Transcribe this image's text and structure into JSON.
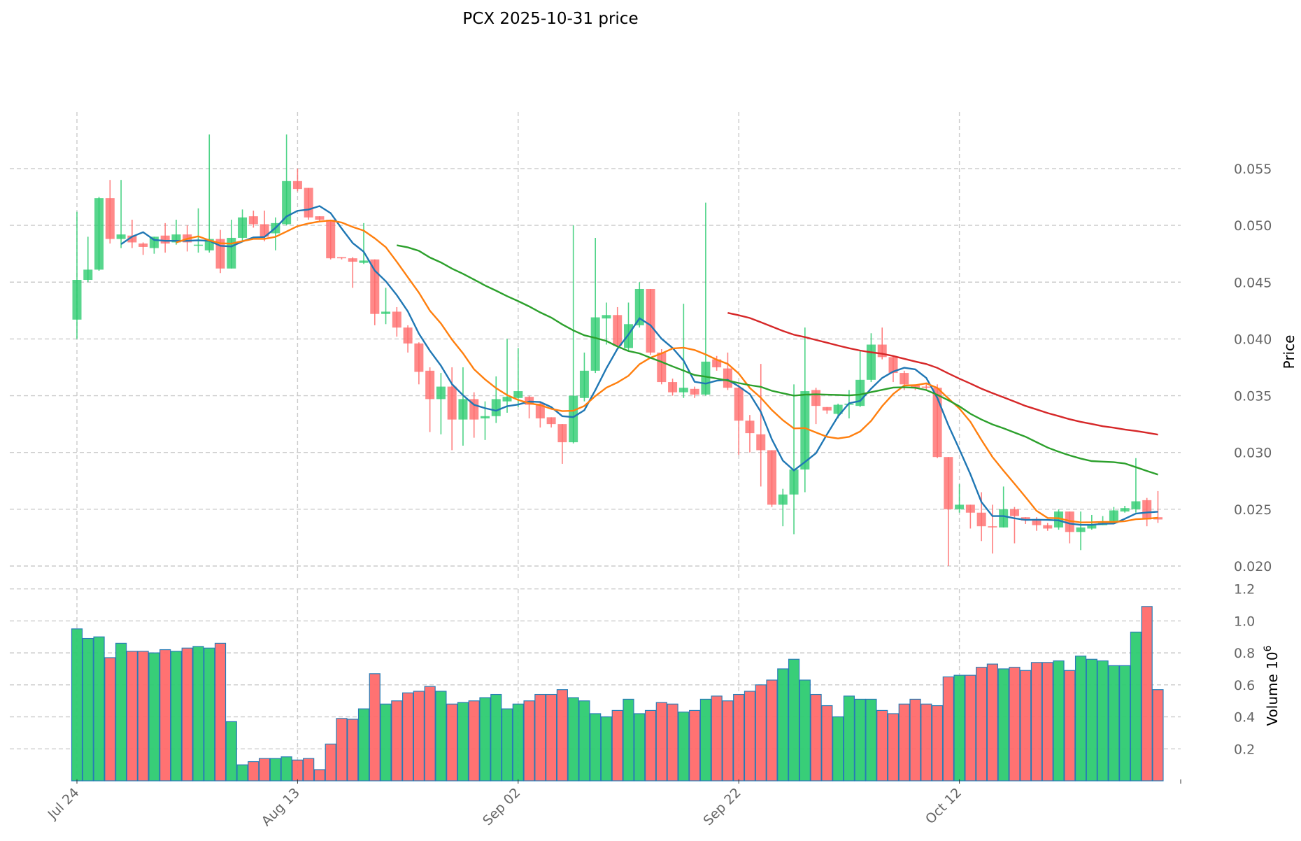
{
  "chart_data": {
    "type": "candlestick",
    "title": "PCX  2025-10-31  price",
    "ylabel": "Price",
    "volume_label": "Volume  10",
    "volume_exp": "6",
    "ylim": [
      0.0185,
      0.0595
    ],
    "vol_lim": [
      0,
      1.2
    ],
    "price_ticks": [
      "0.020",
      "0.025",
      "0.030",
      "0.035",
      "0.040",
      "0.045",
      "0.050",
      "0.055"
    ],
    "volume_ticks": [
      "0.2",
      "0.4",
      "0.6",
      "0.8",
      "1.0",
      "1.2"
    ],
    "x_ticks": [
      {
        "label": "Jul 24",
        "index": 0
      },
      {
        "label": "Aug 13",
        "index": 20
      },
      {
        "label": "Sep 02",
        "index": 40
      },
      {
        "label": "Sep 22",
        "index": 60
      },
      {
        "label": "Oct 12",
        "index": 80
      }
    ],
    "colors": {
      "up": "#2ecc71",
      "down": "#ff6b6b",
      "vol_edge": "#1f77b4"
    },
    "moving_averages": [
      {
        "window": 5,
        "color": "#1f77b4"
      },
      {
        "window": 10,
        "color": "#ff7f0e"
      },
      {
        "window": 30,
        "color": "#2ca02c"
      },
      {
        "window": 60,
        "color": "#d62728"
      }
    ],
    "ohlcv": [
      [
        0.0417,
        0.0512,
        0.04,
        0.0452,
        0.95
      ],
      [
        0.0452,
        0.049,
        0.045,
        0.0461,
        0.89
      ],
      [
        0.0461,
        0.0525,
        0.046,
        0.0524,
        0.9
      ],
      [
        0.0524,
        0.054,
        0.0484,
        0.0488,
        0.77
      ],
      [
        0.0488,
        0.054,
        0.048,
        0.0492,
        0.86
      ],
      [
        0.0491,
        0.0505,
        0.048,
        0.0485,
        0.81
      ],
      [
        0.0484,
        0.0485,
        0.0474,
        0.0481,
        0.81
      ],
      [
        0.048,
        0.049,
        0.0475,
        0.049,
        0.8
      ],
      [
        0.0491,
        0.0502,
        0.0476,
        0.0484,
        0.82
      ],
      [
        0.0485,
        0.0505,
        0.0483,
        0.0492,
        0.81
      ],
      [
        0.0492,
        0.05,
        0.0477,
        0.0485,
        0.83
      ],
      [
        0.0482,
        0.0515,
        0.0476,
        0.0483,
        0.84
      ],
      [
        0.0478,
        0.058,
        0.0476,
        0.0488,
        0.83
      ],
      [
        0.0488,
        0.0496,
        0.0458,
        0.0462,
        0.86
      ],
      [
        0.0462,
        0.0505,
        0.0462,
        0.0489,
        0.37
      ],
      [
        0.0489,
        0.0514,
        0.0485,
        0.0507,
        0.1
      ],
      [
        0.0508,
        0.0513,
        0.0498,
        0.0501,
        0.12
      ],
      [
        0.0501,
        0.0513,
        0.0486,
        0.049,
        0.14
      ],
      [
        0.0493,
        0.0507,
        0.0478,
        0.0502,
        0.14
      ],
      [
        0.0501,
        0.058,
        0.05,
        0.0539,
        0.15
      ],
      [
        0.0539,
        0.055,
        0.053,
        0.0532,
        0.13
      ],
      [
        0.0533,
        0.0533,
        0.0505,
        0.0507,
        0.14
      ],
      [
        0.0508,
        0.0508,
        0.0504,
        0.0505,
        0.07
      ],
      [
        0.0505,
        0.0505,
        0.047,
        0.0471,
        0.23
      ],
      [
        0.0472,
        0.0472,
        0.047,
        0.0471,
        0.39
      ],
      [
        0.0471,
        0.0472,
        0.0445,
        0.0468,
        0.385
      ],
      [
        0.0467,
        0.0502,
        0.0466,
        0.0469,
        0.45
      ],
      [
        0.047,
        0.047,
        0.0412,
        0.0422,
        0.67
      ],
      [
        0.0422,
        0.0445,
        0.0413,
        0.0424,
        0.48
      ],
      [
        0.0424,
        0.0428,
        0.0402,
        0.041,
        0.5
      ],
      [
        0.041,
        0.0412,
        0.0388,
        0.0396,
        0.55
      ],
      [
        0.0396,
        0.0397,
        0.036,
        0.0371,
        0.56
      ],
      [
        0.0372,
        0.0375,
        0.0318,
        0.0347,
        0.59
      ],
      [
        0.0347,
        0.037,
        0.0316,
        0.0358,
        0.56
      ],
      [
        0.0358,
        0.0375,
        0.0302,
        0.0329,
        0.48
      ],
      [
        0.0329,
        0.0375,
        0.0306,
        0.0347,
        0.49
      ],
      [
        0.0347,
        0.0353,
        0.0313,
        0.0329,
        0.5
      ],
      [
        0.033,
        0.0345,
        0.0311,
        0.0332,
        0.52
      ],
      [
        0.0332,
        0.0367,
        0.0326,
        0.0347,
        0.54
      ],
      [
        0.0345,
        0.04,
        0.0335,
        0.0349,
        0.45
      ],
      [
        0.0348,
        0.0392,
        0.034,
        0.0354,
        0.48
      ],
      [
        0.0349,
        0.035,
        0.033,
        0.0342,
        0.5
      ],
      [
        0.0343,
        0.0345,
        0.0322,
        0.033,
        0.54
      ],
      [
        0.0331,
        0.0331,
        0.0322,
        0.0325,
        0.54
      ],
      [
        0.0325,
        0.0325,
        0.029,
        0.0309,
        0.57
      ],
      [
        0.0309,
        0.05,
        0.0308,
        0.035,
        0.52
      ],
      [
        0.0348,
        0.0388,
        0.0345,
        0.0372,
        0.5
      ],
      [
        0.0372,
        0.0489,
        0.037,
        0.0419,
        0.42
      ],
      [
        0.0418,
        0.0432,
        0.0395,
        0.0421,
        0.4
      ],
      [
        0.0421,
        0.0428,
        0.0393,
        0.0394,
        0.44
      ],
      [
        0.0392,
        0.0432,
        0.039,
        0.0413,
        0.51
      ],
      [
        0.0412,
        0.045,
        0.041,
        0.0444,
        0.42
      ],
      [
        0.0444,
        0.0444,
        0.0386,
        0.0388,
        0.44
      ],
      [
        0.0388,
        0.0391,
        0.036,
        0.0362,
        0.49
      ],
      [
        0.0362,
        0.0365,
        0.035,
        0.0353,
        0.48
      ],
      [
        0.0353,
        0.0431,
        0.0348,
        0.0357,
        0.43
      ],
      [
        0.0356,
        0.0358,
        0.0348,
        0.0351,
        0.44
      ],
      [
        0.0351,
        0.052,
        0.035,
        0.038,
        0.51
      ],
      [
        0.0382,
        0.0385,
        0.0372,
        0.0375,
        0.53
      ],
      [
        0.0374,
        0.0388,
        0.0355,
        0.0357,
        0.5
      ],
      [
        0.0357,
        0.036,
        0.0298,
        0.0328,
        0.54
      ],
      [
        0.0328,
        0.0333,
        0.03,
        0.0317,
        0.56
      ],
      [
        0.0316,
        0.0378,
        0.027,
        0.0302,
        0.6
      ],
      [
        0.0302,
        0.0302,
        0.0252,
        0.0254,
        0.63
      ],
      [
        0.0254,
        0.0268,
        0.0235,
        0.0263,
        0.7
      ],
      [
        0.0263,
        0.036,
        0.0228,
        0.0285,
        0.76
      ],
      [
        0.0285,
        0.041,
        0.0265,
        0.0354,
        0.63
      ],
      [
        0.0355,
        0.0357,
        0.0325,
        0.0341,
        0.54
      ],
      [
        0.034,
        0.034,
        0.0334,
        0.0337,
        0.47
      ],
      [
        0.0334,
        0.0343,
        0.033,
        0.0342,
        0.4
      ],
      [
        0.0342,
        0.0355,
        0.033,
        0.0343,
        0.53
      ],
      [
        0.0341,
        0.039,
        0.034,
        0.0364,
        0.51
      ],
      [
        0.0364,
        0.0405,
        0.0362,
        0.0395,
        0.51
      ],
      [
        0.0395,
        0.041,
        0.0382,
        0.0384,
        0.44
      ],
      [
        0.0384,
        0.0385,
        0.0362,
        0.037,
        0.42
      ],
      [
        0.037,
        0.0372,
        0.0355,
        0.036,
        0.48
      ],
      [
        0.0359,
        0.036,
        0.0355,
        0.0357,
        0.51
      ],
      [
        0.0358,
        0.036,
        0.0355,
        0.0357,
        0.48
      ],
      [
        0.0357,
        0.036,
        0.0295,
        0.0296,
        0.47
      ],
      [
        0.0296,
        0.0296,
        0.02,
        0.025,
        0.65
      ],
      [
        0.025,
        0.0272,
        0.0247,
        0.0254,
        0.66
      ],
      [
        0.0254,
        0.0254,
        0.0233,
        0.0247,
        0.66
      ],
      [
        0.0247,
        0.0265,
        0.0222,
        0.0235,
        0.71
      ],
      [
        0.0235,
        0.0254,
        0.0211,
        0.0234,
        0.73
      ],
      [
        0.0234,
        0.027,
        0.0234,
        0.025,
        0.7
      ],
      [
        0.025,
        0.0252,
        0.022,
        0.0244,
        0.71
      ],
      [
        0.0243,
        0.0243,
        0.0237,
        0.024,
        0.69
      ],
      [
        0.024,
        0.0243,
        0.0231,
        0.0236,
        0.74
      ],
      [
        0.0236,
        0.0238,
        0.0231,
        0.0233,
        0.74
      ],
      [
        0.0234,
        0.025,
        0.0232,
        0.0248,
        0.75
      ],
      [
        0.0248,
        0.0248,
        0.022,
        0.023,
        0.69
      ],
      [
        0.023,
        0.0248,
        0.0214,
        0.0234,
        0.78
      ],
      [
        0.0233,
        0.0245,
        0.0232,
        0.0236,
        0.76
      ],
      [
        0.0236,
        0.0244,
        0.0236,
        0.0238,
        0.75
      ],
      [
        0.0238,
        0.0252,
        0.0237,
        0.0249,
        0.72
      ],
      [
        0.0248,
        0.0253,
        0.0247,
        0.0251,
        0.72
      ],
      [
        0.025,
        0.0295,
        0.0247,
        0.0257,
        0.93
      ],
      [
        0.0258,
        0.026,
        0.0235,
        0.0241,
        1.09
      ],
      [
        0.0243,
        0.0266,
        0.0238,
        0.0241,
        0.57
      ]
    ]
  }
}
